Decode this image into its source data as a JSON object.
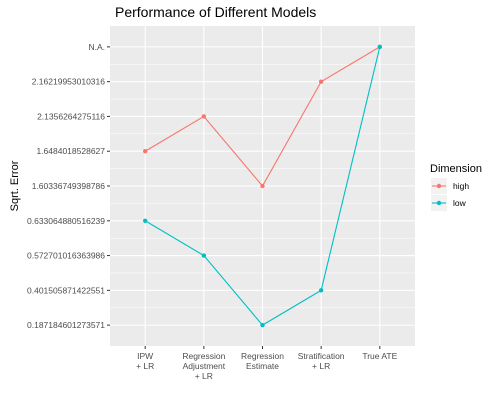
{
  "chart_data": {
    "type": "line",
    "title": "Performance of Different Models",
    "xlabel": "",
    "ylabel": "Sqrt. Error",
    "categories": [
      [
        "IPW",
        "+ LR"
      ],
      [
        "Regression",
        "Adjustment",
        "+ LR"
      ],
      [
        "Regression",
        "Estimate"
      ],
      [
        "Stratification",
        "+ LR"
      ],
      [
        "True ATE"
      ]
    ],
    "y_levels": [
      "0.187184601273571",
      "0.401505871422551",
      "0.572701016363986",
      "0.633064880516239",
      "1.60336749398786",
      "1.6484018528627",
      "2.1356264275116",
      "2.16219953010316",
      "N.A."
    ],
    "series": [
      {
        "name": "high",
        "color": "#F8766D",
        "values": [
          "1.6484018528627",
          "2.1356264275116",
          "1.60336749398786",
          "2.16219953010316",
          "N.A."
        ]
      },
      {
        "name": "low",
        "color": "#00BFC4",
        "values": [
          "0.633064880516239",
          "0.572701016363986",
          "0.187184601273571",
          "0.401505871422551",
          "N.A."
        ]
      }
    ],
    "legend": {
      "title": "Dimension",
      "position": "right"
    },
    "grid": true,
    "panel_background": "#EBEBEB",
    "gridline_color": "#FFFFFF"
  }
}
